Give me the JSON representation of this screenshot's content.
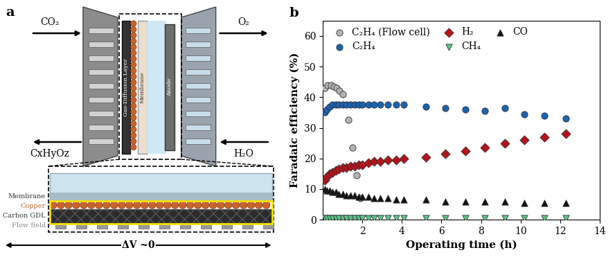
{
  "diagram": {
    "panel_label": "a",
    "flows": {
      "cathode_in": "CO₂",
      "cathode_out": "CxHyOz",
      "anode_out": "O₂",
      "anode_in": "H₂O"
    },
    "cell_layers": [
      "Gas-Diffusion Layer",
      "Membrane",
      "Anode"
    ],
    "zoom_layers": [
      "Membrane",
      "Copper",
      "Carbon GDL",
      "Flow field"
    ],
    "potential_note": "ΔV ~0"
  },
  "chart_data": {
    "type": "scatter",
    "panel_label": "b",
    "x_label": "Operating time (h)",
    "y_label": "Faradaic efficiency (%)",
    "xlim": [
      0,
      14
    ],
    "xticks": [
      2,
      4,
      6,
      8,
      10,
      12,
      14
    ],
    "ylim": [
      0,
      65
    ],
    "yticks": [
      0,
      10,
      20,
      30,
      40,
      50,
      60
    ],
    "legend": "upper left",
    "series": [
      {
        "name": "C₂H₄ (Flow cell)",
        "color": "#b3b3b3",
        "marker": "circle",
        "x": [
          0.1,
          0.25,
          0.4,
          0.55,
          0.7,
          0.85,
          1.0,
          1.3,
          1.5,
          1.7,
          1.9
        ],
        "values": [
          43,
          44,
          44,
          43.5,
          43,
          42,
          41,
          32.5,
          23.5,
          14.5,
          7
        ]
      },
      {
        "name": "C₂H₄",
        "color": "#1a63b0",
        "marker": "circle",
        "x": [
          0.1,
          0.2,
          0.35,
          0.5,
          0.65,
          0.8,
          1.0,
          1.2,
          1.4,
          1.6,
          1.8,
          2.0,
          2.3,
          2.6,
          2.9,
          3.3,
          3.7,
          4.1,
          5.2,
          6.2,
          7.2,
          8.2,
          9.2,
          10.2,
          11.2,
          12.3
        ],
        "values": [
          35,
          36,
          37,
          37.5,
          37.5,
          37.5,
          37.5,
          37.5,
          37.5,
          37.5,
          37.5,
          37.5,
          37.5,
          37.5,
          37.5,
          37.5,
          37.5,
          37.5,
          37,
          36.5,
          36,
          35.5,
          36.5,
          34.5,
          34,
          33
        ]
      },
      {
        "name": "H₂",
        "color": "#b5121b",
        "marker": "diamond",
        "x": [
          0.1,
          0.2,
          0.35,
          0.5,
          0.65,
          0.8,
          1.0,
          1.2,
          1.4,
          1.6,
          1.8,
          2.0,
          2.3,
          2.6,
          2.9,
          3.3,
          3.7,
          4.1,
          5.2,
          6.2,
          7.2,
          8.2,
          9.2,
          10.2,
          11.2,
          12.3
        ],
        "values": [
          13,
          14,
          15,
          15.5,
          16,
          16.5,
          17,
          17,
          17.5,
          17.5,
          18,
          18,
          18.5,
          19,
          19,
          19.5,
          19.5,
          20,
          20.5,
          21.5,
          22.5,
          23.5,
          25,
          26,
          27,
          28
        ]
      },
      {
        "name": "CH₄",
        "color": "#5cc28a",
        "marker": "triangle_down",
        "x": [
          0.1,
          0.2,
          0.35,
          0.5,
          0.65,
          0.8,
          1.0,
          1.2,
          1.4,
          1.6,
          1.8,
          2.0,
          2.3,
          2.6,
          2.9,
          3.3,
          3.7,
          4.1,
          5.2,
          6.2,
          7.2,
          8.2,
          9.2,
          10.2,
          11.2,
          12.3
        ],
        "values": [
          0.5,
          0.5,
          0.5,
          0.5,
          0.5,
          0.5,
          0.5,
          0.5,
          0.5,
          0.5,
          0.5,
          0.5,
          0.5,
          0.5,
          0.5,
          0.5,
          0.5,
          0.5,
          0.5,
          0.5,
          0.5,
          0.5,
          0.5,
          0.5,
          0.5,
          0.5
        ]
      },
      {
        "name": "CO",
        "color": "#111111",
        "marker": "triangle_up",
        "x": [
          0.1,
          0.2,
          0.35,
          0.5,
          0.65,
          0.8,
          1.0,
          1.2,
          1.4,
          1.6,
          1.8,
          2.0,
          2.3,
          2.6,
          2.9,
          3.3,
          3.7,
          4.1,
          5.2,
          6.2,
          7.2,
          8.2,
          9.2,
          10.2,
          11.2,
          12.3
        ],
        "values": [
          10,
          9.5,
          9.5,
          9,
          9,
          8.5,
          8.5,
          8,
          8,
          8,
          7.5,
          7.5,
          7.5,
          7,
          7,
          7,
          6.5,
          6.5,
          6.5,
          6,
          6,
          6,
          6,
          5.5,
          5.5,
          5.5
        ]
      }
    ]
  }
}
